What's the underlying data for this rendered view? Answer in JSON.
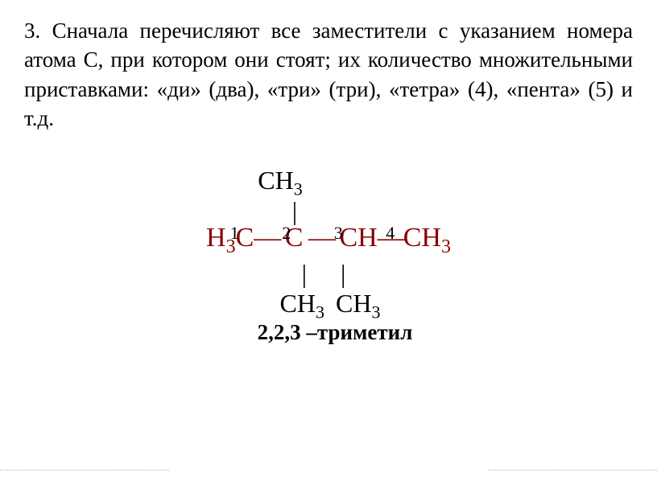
{
  "paragraph": {
    "text": "3. Сначала перечисляют все заместители с указанием номера атома С, при котором они стоят; их количество множительными приставками: «ди» (два), «три» (три), «тетра» (4), «пента» (5) и т.д."
  },
  "formula": {
    "top_group": "CH",
    "top_group_sub": "3",
    "numbers": [
      "1",
      "2",
      "3",
      "4"
    ],
    "main_chain": {
      "c1": "H",
      "c1_sub": "3",
      "c1_after": "C",
      "c2": "C",
      "c3": "CH",
      "c4": "CH",
      "c4_sub": "3"
    },
    "bottom_group_left": "CH",
    "bottom_group_left_sub": "3",
    "bottom_group_right": "CH",
    "bottom_group_right_sub": "3",
    "compound_name": "2,2,3 –триметил"
  },
  "colors": {
    "text": "#000000",
    "formula_main": "#8b0000",
    "background": "#ffffff",
    "dotted": "#bbbbbb"
  }
}
